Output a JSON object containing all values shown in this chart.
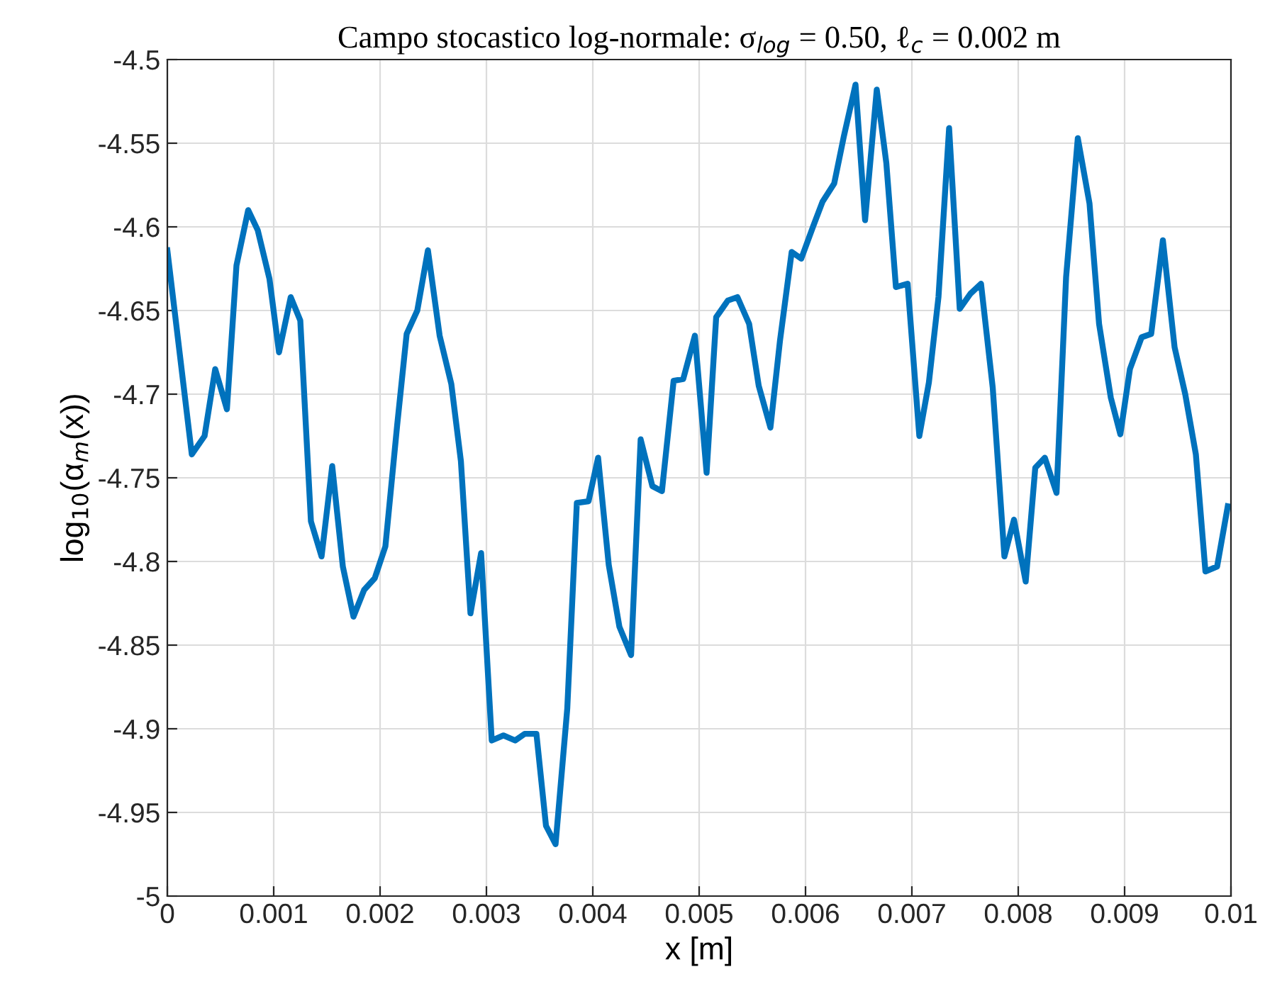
{
  "chart_data": {
    "type": "line",
    "title": "Campo stocastico log-normale: σ$_{log}$ = 0.50, ℓ$_{c}$ = 0.002 m",
    "xlabel": "x [m]",
    "ylabel": "log$_{10}$(α$_{m}$(x))",
    "series": [
      {
        "color": "#0072bd",
        "x": [
          0,
          0.00023,
          0.00035,
          0.00045,
          0.00056,
          0.00065,
          0.00076,
          0.00085,
          0.00096,
          0.00105,
          0.00116,
          0.00125,
          0.00135,
          0.00145,
          0.00155,
          0.00165,
          0.00175,
          0.00185,
          0.00195,
          0.00205,
          0.00216,
          0.00225,
          0.00235,
          0.00245,
          0.00256,
          0.00267,
          0.00276,
          0.00285,
          0.00295,
          0.00305,
          0.00316,
          0.00327,
          0.00336,
          0.00347,
          0.00356,
          0.00365,
          0.00376,
          0.00385,
          0.00396,
          0.00405,
          0.00415,
          0.00425,
          0.00436,
          0.00445,
          0.00456,
          0.00465,
          0.00476,
          0.00485,
          0.00496,
          0.00507,
          0.00516,
          0.00527,
          0.00536,
          0.00547,
          0.00556,
          0.00567,
          0.00576,
          0.00587,
          0.00596,
          0.00607,
          0.00616,
          0.00627,
          0.00636,
          0.00647,
          0.00656,
          0.00667,
          0.00676,
          0.00685,
          0.00696,
          0.00707,
          0.00716,
          0.00725,
          0.00735,
          0.00745,
          0.00755,
          0.00765,
          0.00776,
          0.00787,
          0.00796,
          0.00807,
          0.00816,
          0.00825,
          0.00836,
          0.00845,
          0.00856,
          0.00867,
          0.00876,
          0.00887,
          0.00896,
          0.00905,
          0.00916,
          0.00925,
          0.00936,
          0.00947,
          0.00957,
          0.00967,
          0.00976,
          0.00987,
          0.00997
        ],
        "values": [
          -4.614,
          -4.736,
          -4.725,
          -4.685,
          -4.709,
          -4.623,
          -4.59,
          -4.602,
          -4.631,
          -4.675,
          -4.642,
          -4.656,
          -4.776,
          -4.797,
          -4.743,
          -4.803,
          -4.833,
          -4.817,
          -4.81,
          -4.791,
          -4.719,
          -4.664,
          -4.65,
          -4.614,
          -4.665,
          -4.694,
          -4.74,
          -4.831,
          -4.795,
          -4.907,
          -4.904,
          -4.907,
          -4.903,
          -4.903,
          -4.958,
          -4.969,
          -4.888,
          -4.765,
          -4.764,
          -4.738,
          -4.802,
          -4.839,
          -4.856,
          -4.727,
          -4.755,
          -4.758,
          -4.692,
          -4.691,
          -4.665,
          -4.747,
          -4.654,
          -4.644,
          -4.642,
          -4.658,
          -4.695,
          -4.72,
          -4.668,
          -4.615,
          -4.619,
          -4.6,
          -4.585,
          -4.574,
          -4.546,
          -4.515,
          -4.596,
          -4.518,
          -4.562,
          -4.636,
          -4.634,
          -4.725,
          -4.693,
          -4.642,
          -4.541,
          -4.649,
          -4.64,
          -4.634,
          -4.696,
          -4.797,
          -4.775,
          -4.812,
          -4.744,
          -4.738,
          -4.759,
          -4.63,
          -4.547,
          -4.586,
          -4.658,
          -4.702,
          -4.724,
          -4.685,
          -4.666,
          -4.664,
          -4.608,
          -4.672,
          -4.7,
          -4.736,
          -4.806,
          -4.803,
          -4.767
        ]
      }
    ],
    "xlim": [
      0,
      0.01
    ],
    "xticks": [
      0,
      0.001,
      0.002,
      0.003,
      0.004,
      0.005,
      0.006,
      0.007,
      0.008,
      0.009,
      0.01
    ],
    "ylim": [
      -5,
      -4.5
    ],
    "yticks": [
      {
        "value": -5,
        "label": "-5"
      },
      {
        "value": -4.95,
        "label": "-4.95"
      },
      {
        "value": -4.9,
        "label": "-4.9"
      },
      {
        "value": -4.85,
        "label": "-4.85"
      },
      {
        "value": -4.8,
        "label": "-4.8"
      },
      {
        "value": -4.75,
        "label": "-4.75"
      },
      {
        "value": -4.7,
        "label": "-4.7"
      },
      {
        "value": -4.65,
        "label": "-4.65"
      },
      {
        "value": -4.6,
        "label": "-4.6"
      },
      {
        "value": -4.55,
        "label": "-4.55"
      },
      {
        "value": -4.5,
        "label": "-4.5"
      }
    ],
    "grid": true,
    "marker": "none",
    "line_style": "solid"
  }
}
